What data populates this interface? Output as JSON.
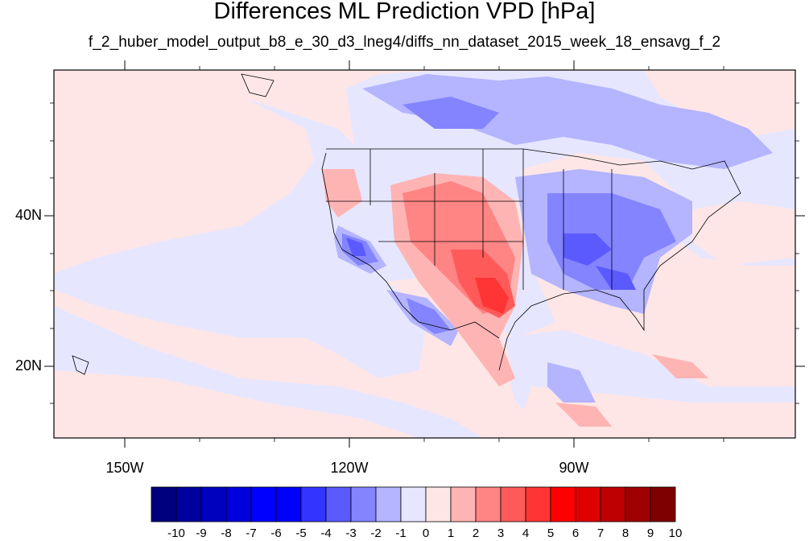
{
  "title": "Differences ML Prediction VPD [hPa]",
  "subtitle": "f_2_huber_model_output_b8_e_30_d3_lneg4/diffs_nn_dataset_2015_week_18_ensavg_f_2",
  "map": {
    "lat_labels": [
      "40N",
      "20N"
    ],
    "lon_labels": [
      "150W",
      "120W",
      "90W"
    ],
    "background_color": "#ffe6e6"
  },
  "colorbar": {
    "labels": [
      "-10",
      "-9",
      "-8",
      "-7",
      "-6",
      "-5",
      "-4",
      "-3",
      "-2",
      "-1",
      "0",
      "1",
      "2",
      "3",
      "4",
      "5",
      "6",
      "7",
      "8",
      "9",
      "10"
    ],
    "colors": [
      "#00007f",
      "#00009f",
      "#0000bf",
      "#0000df",
      "#0000ff",
      "#0000ff",
      "#3434ff",
      "#5a5aff",
      "#8484ff",
      "#b4b4ff",
      "#e6e6ff",
      "#ffe6e6",
      "#ffb4b4",
      "#ff8484",
      "#ff5a5a",
      "#ff3434",
      "#ff0000",
      "#df0000",
      "#bf0000",
      "#9f0000",
      "#7f0000"
    ]
  }
}
